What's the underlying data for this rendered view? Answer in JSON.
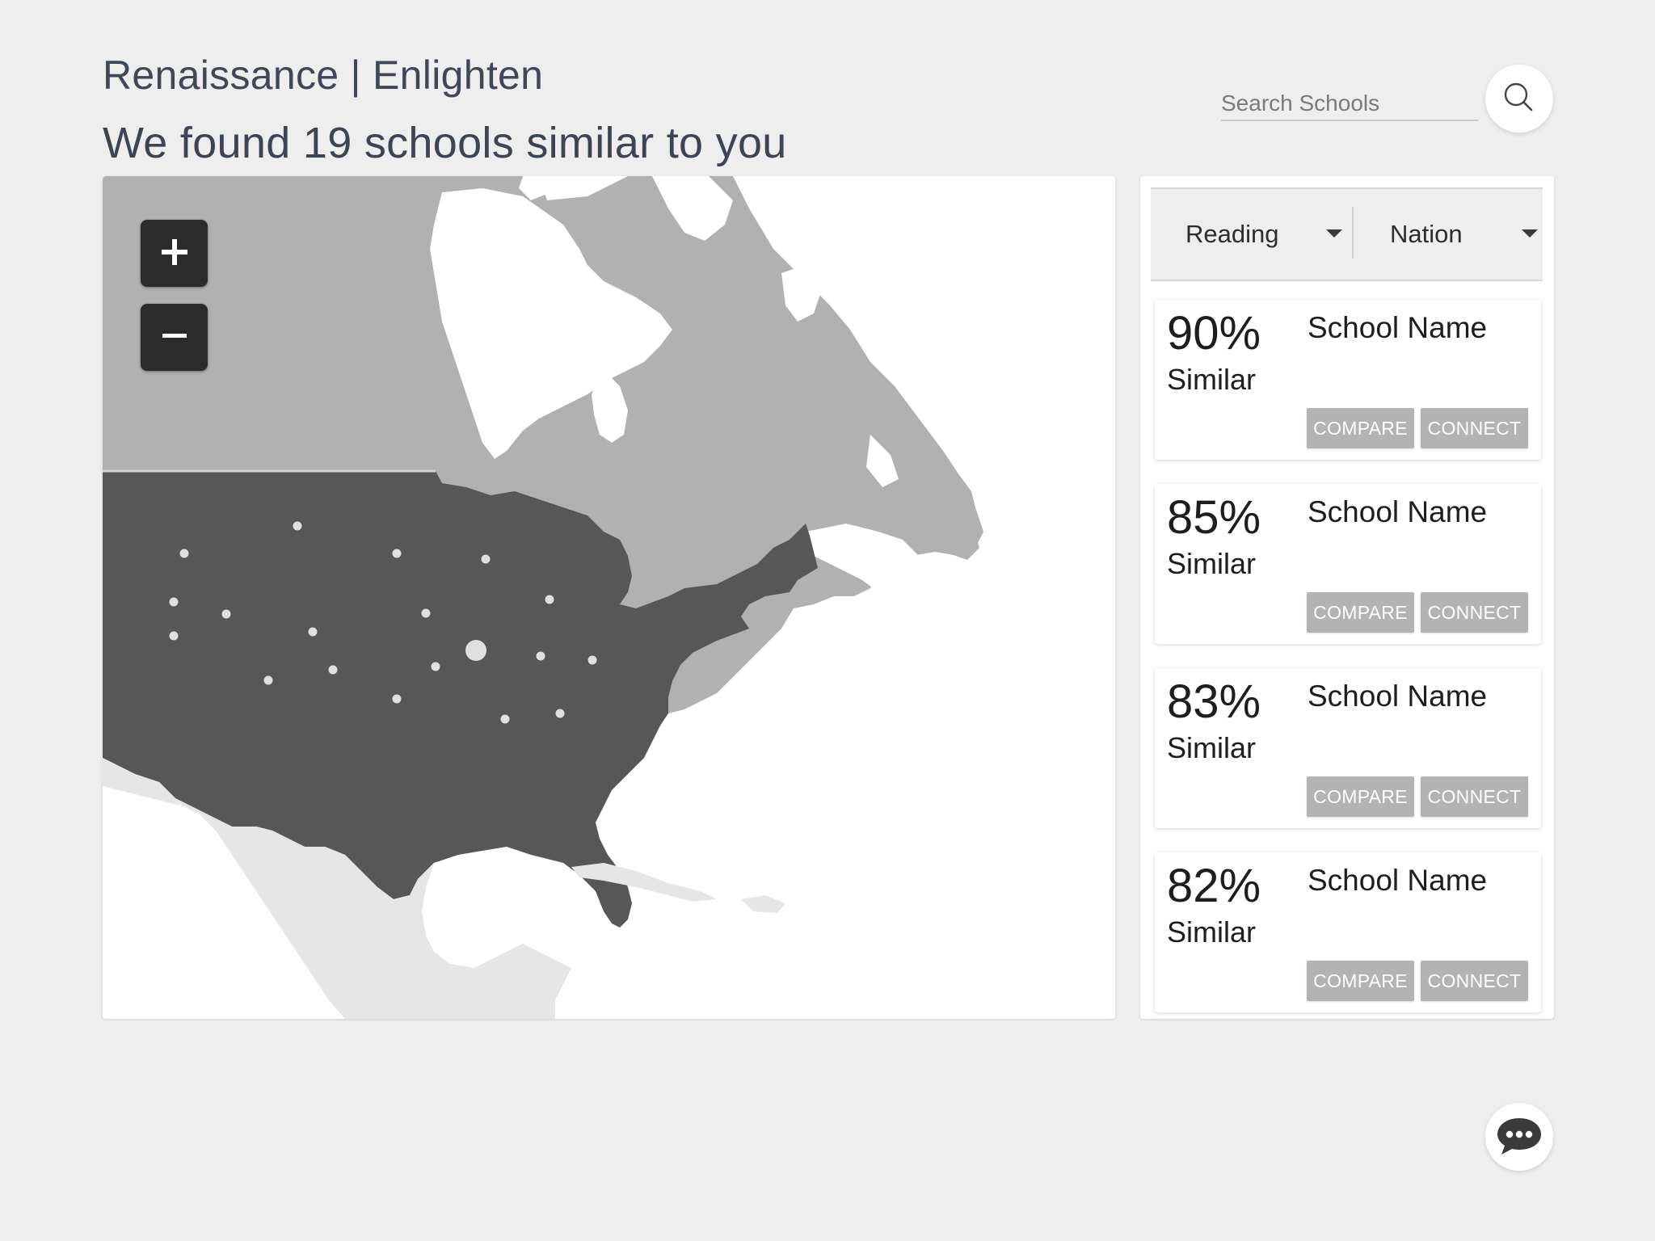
{
  "header": {
    "app_title": "Renaissance | Enlighten",
    "subtitle": "We found 19 schools similar to you"
  },
  "search": {
    "placeholder": "Search Schools",
    "button_icon": "search-icon"
  },
  "map": {
    "zoom_in_icon": "plus-icon",
    "zoom_out_icon": "minus-icon",
    "colors": {
      "ocean": "#ffffff",
      "canada": "#b1b1b1",
      "usa": "#575757",
      "mexico": "#e6e6e6",
      "school_dot": "#e0e0e0"
    }
  },
  "filters": {
    "subject": "Reading",
    "scope": "Nation"
  },
  "results": [
    {
      "similarity": "90%",
      "similar_label": "Similar",
      "name": "School Name",
      "compare_label": "COMPARE",
      "connect_label": "CONNECT"
    },
    {
      "similarity": "85%",
      "similar_label": "Similar",
      "name": "School Name",
      "compare_label": "COMPARE",
      "connect_label": "CONNECT"
    },
    {
      "similarity": "83%",
      "similar_label": "Similar",
      "name": "School Name",
      "compare_label": "COMPARE",
      "connect_label": "CONNECT"
    },
    {
      "similarity": "82%",
      "similar_label": "Similar",
      "name": "School Name",
      "compare_label": "COMPARE",
      "connect_label": "CONNECT"
    }
  ],
  "chat": {
    "icon": "chat-bubble-icon"
  }
}
